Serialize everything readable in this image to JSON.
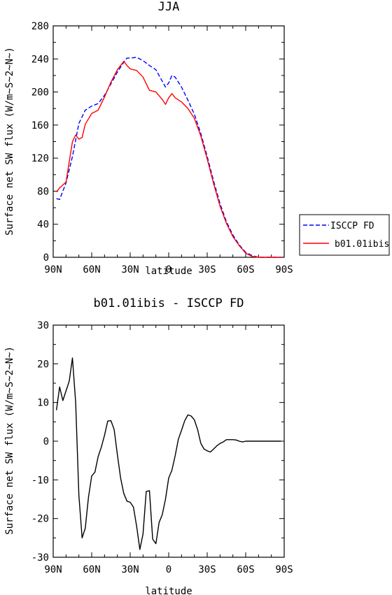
{
  "chart_data": [
    {
      "type": "line",
      "title": "JJA",
      "xlabel": "latitude",
      "ylabel": "Surface net SW flux (W/m~S~2~N~)",
      "xlim": [
        90,
        -90
      ],
      "ylim": [
        0,
        280
      ],
      "x_ticks": [
        "90N",
        "60N",
        "30N",
        "0",
        "30S",
        "60S",
        "90S"
      ],
      "y_ticks": [
        "0",
        "40",
        "80",
        "120",
        "160",
        "200",
        "240",
        "280"
      ],
      "legend_position": "right",
      "series": [
        {
          "name": "ISCCP FD",
          "color": "#0000ff",
          "style": "dashed",
          "x": [
            87.5,
            85,
            80,
            75,
            72.5,
            70,
            65,
            60,
            55,
            50,
            45,
            40,
            35,
            32.5,
            30,
            25,
            20,
            15,
            10,
            5,
            2.5,
            0,
            -2.5,
            -5,
            -10,
            -15,
            -20,
            -25,
            -30,
            -35,
            -40,
            -45,
            -50,
            -55,
            -60,
            -65,
            -70,
            -75,
            -80,
            -85,
            -87.5
          ],
          "y": [
            71,
            70,
            90,
            122,
            142,
            162,
            178,
            183,
            186,
            196,
            210,
            224,
            236,
            241,
            241,
            242,
            238,
            232,
            227,
            213,
            206,
            211,
            220,
            218,
            206,
            190,
            173,
            150,
            122,
            92,
            65,
            43,
            27,
            15,
            6,
            2,
            0,
            0,
            0,
            0,
            0
          ]
        },
        {
          "name": "b01.01ibis",
          "color": "#ff0000",
          "style": "solid",
          "x": [
            87.5,
            85,
            80,
            75,
            72.5,
            70,
            67.5,
            65,
            60,
            55,
            50,
            45,
            40,
            35,
            32.5,
            30,
            25,
            20,
            15,
            10,
            5,
            2.5,
            0,
            -2.5,
            -5,
            -10,
            -15,
            -20,
            -25,
            -30,
            -35,
            -40,
            -45,
            -50,
            -55,
            -60,
            -65,
            -70,
            -75,
            -80,
            -85,
            -87.5
          ],
          "y": [
            79,
            84,
            91,
            140,
            148,
            143,
            145,
            161,
            174,
            178,
            194,
            212,
            227,
            237,
            232,
            228,
            226,
            218,
            202,
            200,
            191,
            185,
            193,
            198,
            193,
            188,
            180,
            168,
            147,
            119,
            89,
            62,
            41,
            25,
            14,
            5,
            1,
            0,
            0,
            0,
            0,
            0
          ]
        }
      ]
    },
    {
      "type": "line",
      "title": "b01.01ibis - ISCCP FD",
      "xlabel": "latitude",
      "ylabel": "Surface net SW flux (W/m~S~2~N~)",
      "xlim": [
        90,
        -90
      ],
      "ylim": [
        -30,
        30
      ],
      "x_ticks": [
        "90N",
        "60N",
        "30N",
        "0",
        "30S",
        "60S",
        "90S"
      ],
      "y_ticks": [
        "-30",
        "-20",
        "-10",
        "0",
        "10",
        "20",
        "30"
      ],
      "series": [
        {
          "color": "#000000",
          "style": "solid",
          "x": [
            87.5,
            85,
            82.5,
            80,
            77.5,
            75,
            72.5,
            70,
            67.5,
            65,
            62.5,
            60,
            57.5,
            55,
            52.5,
            50,
            47.5,
            45,
            42.5,
            40,
            37.5,
            35,
            32.5,
            30,
            27.5,
            25,
            22.5,
            20,
            17.5,
            15,
            12.5,
            10,
            7.5,
            5,
            2.5,
            0,
            -2.5,
            -5,
            -7.5,
            -10,
            -12.5,
            -15,
            -17.5,
            -20,
            -22.5,
            -25,
            -27.5,
            -30,
            -32.5,
            -35,
            -37.5,
            -40,
            -42.5,
            -45,
            -47.5,
            -50,
            -52.5,
            -55,
            -57.5,
            -60,
            -62.5,
            -65,
            -67.5,
            -70,
            -72.5,
            -75,
            -77.5,
            -80,
            -82.5,
            -85,
            -87.5
          ],
          "y": [
            8,
            14,
            10.5,
            13,
            15.5,
            21.5,
            10,
            -14,
            -25,
            -22.5,
            -14.5,
            -9,
            -8,
            -4,
            -1.5,
            1.5,
            5.2,
            5.3,
            3,
            -3.5,
            -9.5,
            -13.5,
            -15.5,
            -15.8,
            -17,
            -22,
            -28,
            -24,
            -13,
            -12.8,
            -25.3,
            -26.5,
            -21,
            -19,
            -15,
            -9.5,
            -7.5,
            -3.8,
            0.5,
            2.8,
            5.3,
            6.8,
            6.5,
            5.5,
            3,
            -0.5,
            -2,
            -2.5,
            -2.8,
            -2,
            -1.2,
            -0.6,
            -0.2,
            0.4,
            0.4,
            0.4,
            0.3,
            0,
            -0.2,
            0,
            0,
            0,
            0,
            0,
            0,
            0,
            0,
            0,
            0,
            0,
            0
          ]
        }
      ]
    }
  ]
}
